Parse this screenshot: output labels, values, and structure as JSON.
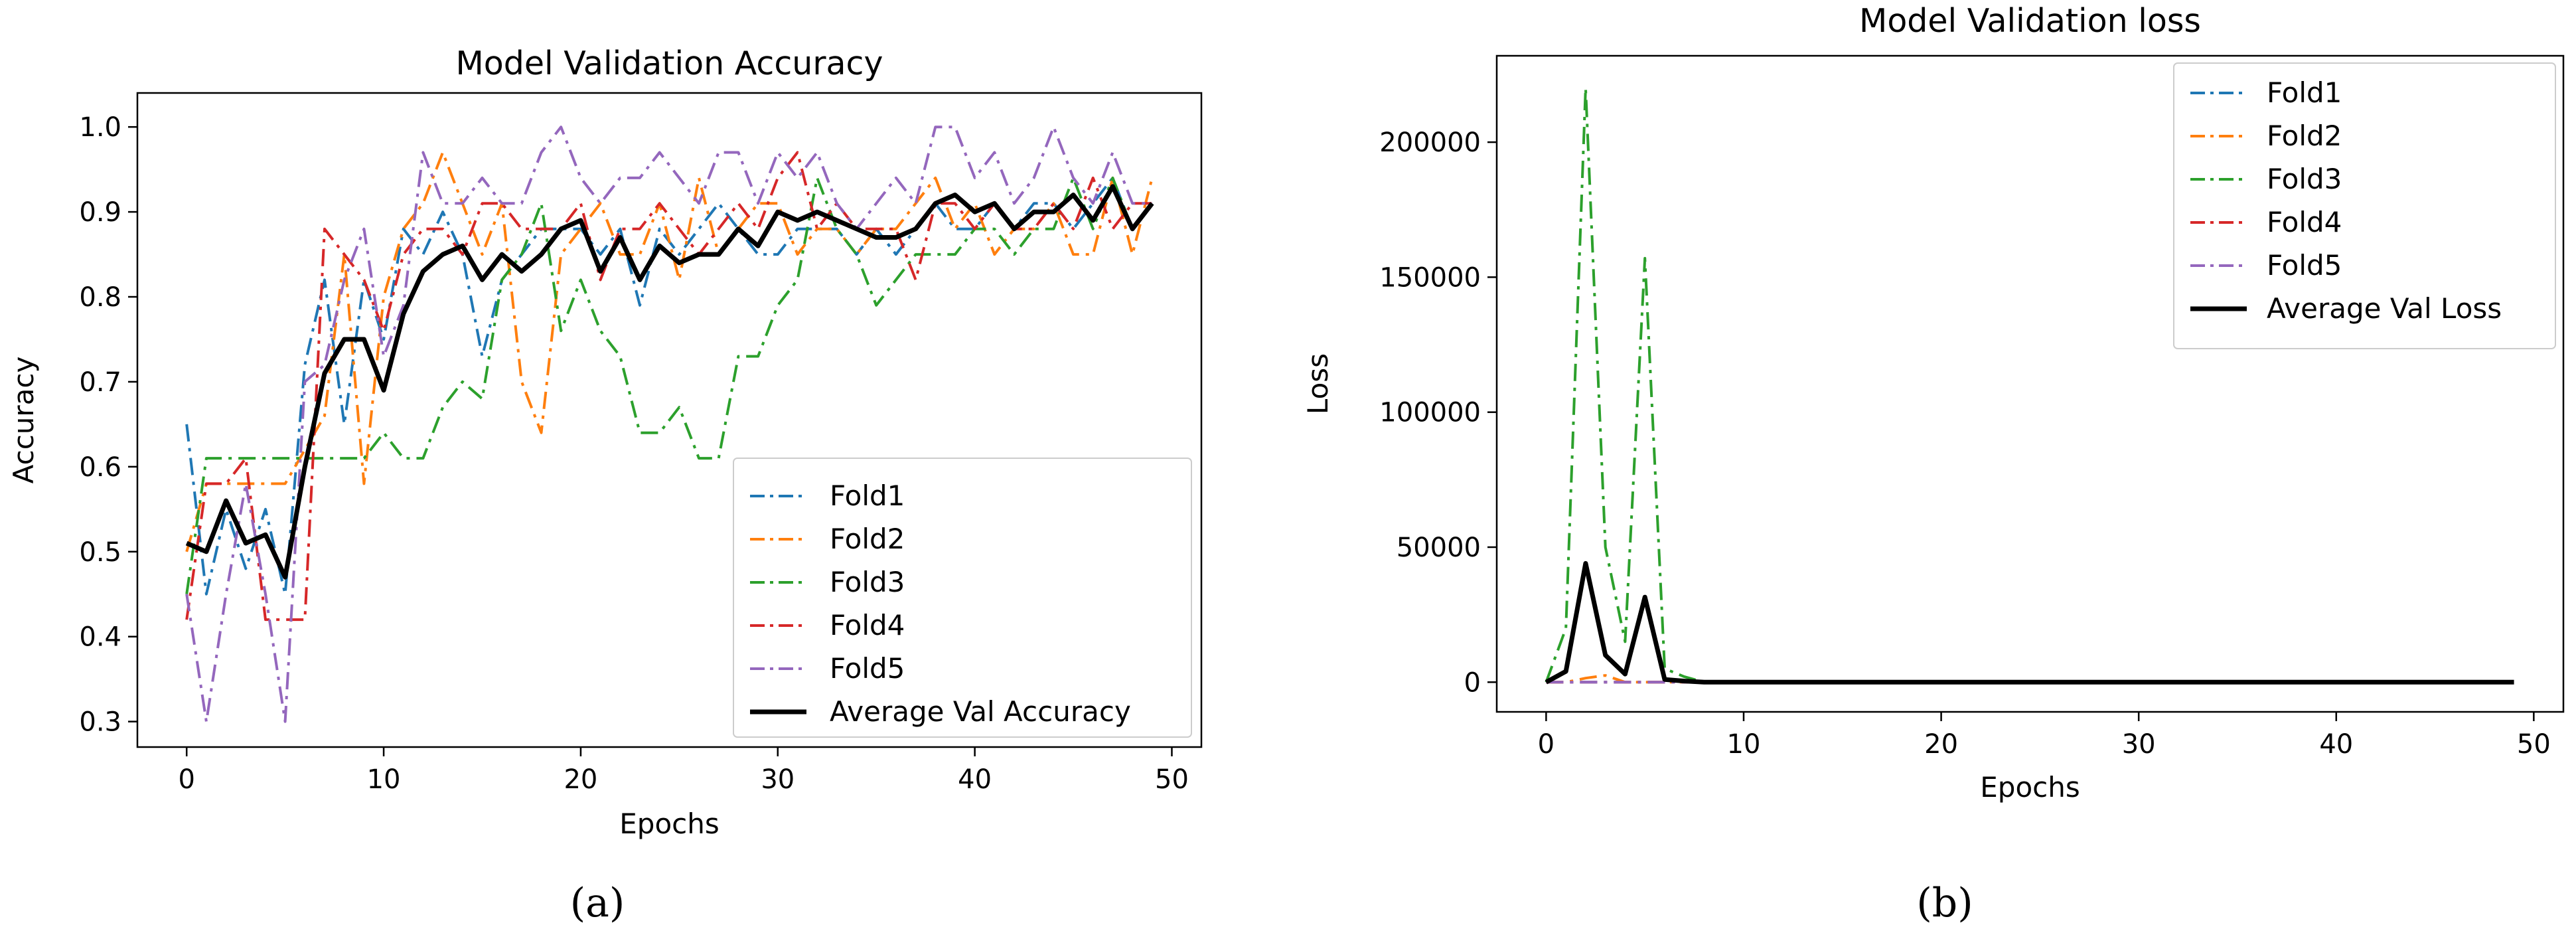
{
  "chart_data": [
    {
      "type": "line",
      "title": "Model Validation Accuracy",
      "xlabel": "Epochs",
      "ylabel": "Accuracy",
      "caption": "(a)",
      "xlim": [
        -2.5,
        51.5
      ],
      "ylim": [
        0.27,
        1.04
      ],
      "xticks": [
        0,
        10,
        20,
        30,
        40,
        50
      ],
      "yticks": [
        0.3,
        0.4,
        0.5,
        0.6,
        0.7,
        0.8,
        0.9,
        1.0
      ],
      "ytick_labels": [
        "0.3",
        "0.4",
        "0.5",
        "0.6",
        "0.7",
        "0.8",
        "0.9",
        "1.0"
      ],
      "grid": false,
      "legend_position": "lower-right",
      "x": [
        0,
        1,
        2,
        3,
        4,
        5,
        6,
        7,
        8,
        9,
        10,
        11,
        12,
        13,
        14,
        15,
        16,
        17,
        18,
        19,
        20,
        21,
        22,
        23,
        24,
        25,
        26,
        27,
        28,
        29,
        30,
        31,
        32,
        33,
        34,
        35,
        36,
        37,
        38,
        39,
        40,
        41,
        42,
        43,
        44,
        45,
        46,
        47,
        48,
        49
      ],
      "series": [
        {
          "name": "Fold1",
          "color": "#1f77b4",
          "style": "dashdot",
          "values": [
            0.65,
            0.45,
            0.55,
            0.48,
            0.55,
            0.45,
            0.72,
            0.82,
            0.65,
            0.82,
            0.75,
            0.88,
            0.85,
            0.9,
            0.85,
            0.73,
            0.82,
            0.85,
            0.88,
            0.88,
            0.88,
            0.85,
            0.88,
            0.79,
            0.88,
            0.85,
            0.88,
            0.91,
            0.88,
            0.85,
            0.85,
            0.88,
            0.88,
            0.88,
            0.85,
            0.88,
            0.85,
            0.88,
            0.91,
            0.88,
            0.88,
            0.91,
            0.88,
            0.91,
            0.91,
            0.88,
            0.91,
            0.94,
            0.88,
            0.91
          ]
        },
        {
          "name": "Fold2",
          "color": "#ff7f0e",
          "style": "dashdot",
          "values": [
            0.5,
            0.58,
            0.58,
            0.58,
            0.58,
            0.58,
            0.62,
            0.66,
            0.85,
            0.58,
            0.8,
            0.88,
            0.91,
            0.97,
            0.91,
            0.85,
            0.91,
            0.7,
            0.64,
            0.85,
            0.88,
            0.91,
            0.85,
            0.85,
            0.91,
            0.82,
            0.94,
            0.85,
            0.88,
            0.91,
            0.91,
            0.85,
            0.88,
            0.88,
            0.85,
            0.88,
            0.88,
            0.91,
            0.94,
            0.88,
            0.91,
            0.85,
            0.88,
            0.88,
            0.91,
            0.85,
            0.85,
            0.94,
            0.85,
            0.94
          ]
        },
        {
          "name": "Fold3",
          "color": "#2ca02c",
          "style": "dashdot",
          "values": [
            0.45,
            0.61,
            0.61,
            0.61,
            0.61,
            0.61,
            0.61,
            0.61,
            0.61,
            0.61,
            0.64,
            0.61,
            0.61,
            0.67,
            0.7,
            0.68,
            0.82,
            0.85,
            0.91,
            0.76,
            0.82,
            0.76,
            0.73,
            0.64,
            0.64,
            0.67,
            0.61,
            0.61,
            0.73,
            0.73,
            0.79,
            0.82,
            0.94,
            0.88,
            0.85,
            0.79,
            0.82,
            0.85,
            0.85,
            0.85,
            0.88,
            0.88,
            0.85,
            0.88,
            0.88,
            0.94,
            0.88,
            0.94,
            0.88,
            0.91
          ]
        },
        {
          "name": "Fold4",
          "color": "#d62728",
          "style": "dashdot",
          "values": [
            0.42,
            0.58,
            0.58,
            0.61,
            0.42,
            0.42,
            0.42,
            0.88,
            0.85,
            0.82,
            0.76,
            0.85,
            0.88,
            0.88,
            0.85,
            0.91,
            0.91,
            0.88,
            0.88,
            0.88,
            0.91,
            0.82,
            0.88,
            0.88,
            0.91,
            0.88,
            0.85,
            0.88,
            0.91,
            0.88,
            0.94,
            0.97,
            0.88,
            0.91,
            0.88,
            0.88,
            0.88,
            0.82,
            0.91,
            0.91,
            0.88,
            0.91,
            0.88,
            0.88,
            0.91,
            0.88,
            0.94,
            0.88,
            0.91,
            0.91
          ]
        },
        {
          "name": "Fold5",
          "color": "#9467bd",
          "style": "dashdot",
          "values": [
            0.45,
            0.3,
            0.45,
            0.58,
            0.45,
            0.3,
            0.7,
            0.72,
            0.82,
            0.88,
            0.73,
            0.79,
            0.97,
            0.91,
            0.91,
            0.94,
            0.91,
            0.91,
            0.97,
            1.0,
            0.94,
            0.91,
            0.94,
            0.94,
            0.97,
            0.94,
            0.91,
            0.97,
            0.97,
            0.91,
            0.97,
            0.94,
            0.97,
            0.91,
            0.88,
            0.91,
            0.94,
            0.91,
            1.0,
            1.0,
            0.94,
            0.97,
            0.91,
            0.94,
            1.0,
            0.94,
            0.91,
            0.97,
            0.91,
            0.91
          ]
        },
        {
          "name": "Average Val Accuracy",
          "color": "#000000",
          "style": "solid",
          "values": [
            0.51,
            0.5,
            0.56,
            0.51,
            0.52,
            0.47,
            0.6,
            0.71,
            0.75,
            0.75,
            0.69,
            0.78,
            0.83,
            0.85,
            0.86,
            0.82,
            0.85,
            0.83,
            0.85,
            0.88,
            0.89,
            0.83,
            0.87,
            0.82,
            0.86,
            0.84,
            0.85,
            0.85,
            0.88,
            0.86,
            0.9,
            0.89,
            0.9,
            0.89,
            0.88,
            0.87,
            0.87,
            0.88,
            0.91,
            0.92,
            0.9,
            0.91,
            0.88,
            0.9,
            0.9,
            0.92,
            0.89,
            0.93,
            0.88,
            0.91
          ]
        }
      ]
    },
    {
      "type": "line",
      "title": "Model Validation loss",
      "xlabel": "Epochs",
      "ylabel": "Loss",
      "caption": "(b)",
      "xlim": [
        -2.5,
        51.5
      ],
      "ylim": [
        -11000,
        232000
      ],
      "xticks": [
        0,
        10,
        20,
        30,
        40,
        50
      ],
      "yticks": [
        0,
        50000,
        100000,
        150000,
        200000
      ],
      "ytick_labels": [
        "0",
        "50000",
        "100000",
        "150000",
        "200000"
      ],
      "grid": false,
      "legend_position": "top-right",
      "x": [
        0,
        1,
        2,
        3,
        4,
        5,
        6,
        7,
        8,
        9,
        10,
        11,
        12,
        13,
        14,
        15,
        16,
        17,
        18,
        19,
        20,
        21,
        22,
        23,
        24,
        25,
        26,
        27,
        28,
        29,
        30,
        31,
        32,
        33,
        34,
        35,
        36,
        37,
        38,
        39,
        40,
        41,
        42,
        43,
        44,
        45,
        46,
        47,
        48,
        49
      ],
      "series": [
        {
          "name": "Fold1",
          "color": "#1f77b4",
          "style": "dashdot",
          "values": [
            0,
            0,
            0,
            0,
            0,
            0,
            0,
            0,
            0,
            0,
            0,
            0,
            0,
            0,
            0,
            0,
            0,
            0,
            0,
            0,
            0,
            0,
            0,
            0,
            0,
            0,
            0,
            0,
            0,
            0,
            0,
            0,
            0,
            0,
            0,
            0,
            0,
            0,
            0,
            0,
            0,
            0,
            0,
            0,
            0,
            0,
            0,
            0,
            0,
            0
          ]
        },
        {
          "name": "Fold2",
          "color": "#ff7f0e",
          "style": "dashdot",
          "values": [
            0,
            0,
            1500,
            2500,
            0,
            0,
            0,
            0,
            0,
            0,
            0,
            0,
            0,
            0,
            0,
            0,
            0,
            0,
            0,
            0,
            0,
            0,
            0,
            0,
            0,
            0,
            0,
            0,
            0,
            0,
            0,
            0,
            0,
            0,
            0,
            0,
            0,
            0,
            0,
            0,
            0,
            0,
            0,
            0,
            0,
            0,
            0,
            0,
            0,
            0
          ]
        },
        {
          "name": "Fold3",
          "color": "#2ca02c",
          "style": "dashdot",
          "values": [
            0,
            20000,
            220000,
            50000,
            15000,
            157000,
            5000,
            2000,
            0,
            0,
            0,
            0,
            0,
            0,
            0,
            0,
            0,
            0,
            0,
            0,
            0,
            0,
            0,
            0,
            0,
            0,
            0,
            0,
            0,
            0,
            0,
            0,
            0,
            0,
            0,
            0,
            0,
            0,
            0,
            0,
            0,
            0,
            0,
            0,
            0,
            0,
            0,
            0,
            0,
            0
          ]
        },
        {
          "name": "Fold4",
          "color": "#d62728",
          "style": "dashdot",
          "values": [
            0,
            0,
            0,
            0,
            0,
            0,
            0,
            0,
            0,
            0,
            0,
            0,
            0,
            0,
            0,
            0,
            0,
            0,
            0,
            0,
            0,
            0,
            0,
            0,
            0,
            0,
            0,
            0,
            0,
            0,
            0,
            0,
            0,
            0,
            0,
            0,
            0,
            0,
            0,
            0,
            0,
            0,
            0,
            0,
            0,
            0,
            0,
            0,
            0,
            0
          ]
        },
        {
          "name": "Fold5",
          "color": "#9467bd",
          "style": "dashdot",
          "values": [
            0,
            0,
            0,
            0,
            0,
            0,
            0,
            0,
            0,
            0,
            0,
            0,
            0,
            0,
            0,
            0,
            0,
            0,
            0,
            0,
            0,
            0,
            0,
            0,
            0,
            0,
            0,
            0,
            0,
            0,
            0,
            0,
            0,
            0,
            0,
            0,
            0,
            0,
            0,
            0,
            0,
            0,
            0,
            0,
            0,
            0,
            0,
            0,
            0,
            0
          ]
        },
        {
          "name": "Average Val Loss",
          "color": "#000000",
          "style": "solid",
          "values": [
            0,
            4000,
            44000,
            10000,
            3000,
            31500,
            1000,
            400,
            0,
            0,
            0,
            0,
            0,
            0,
            0,
            0,
            0,
            0,
            0,
            0,
            0,
            0,
            0,
            0,
            0,
            0,
            0,
            0,
            0,
            0,
            0,
            0,
            0,
            0,
            0,
            0,
            0,
            0,
            0,
            0,
            0,
            0,
            0,
            0,
            0,
            0,
            0,
            0,
            0,
            0
          ]
        }
      ]
    }
  ]
}
